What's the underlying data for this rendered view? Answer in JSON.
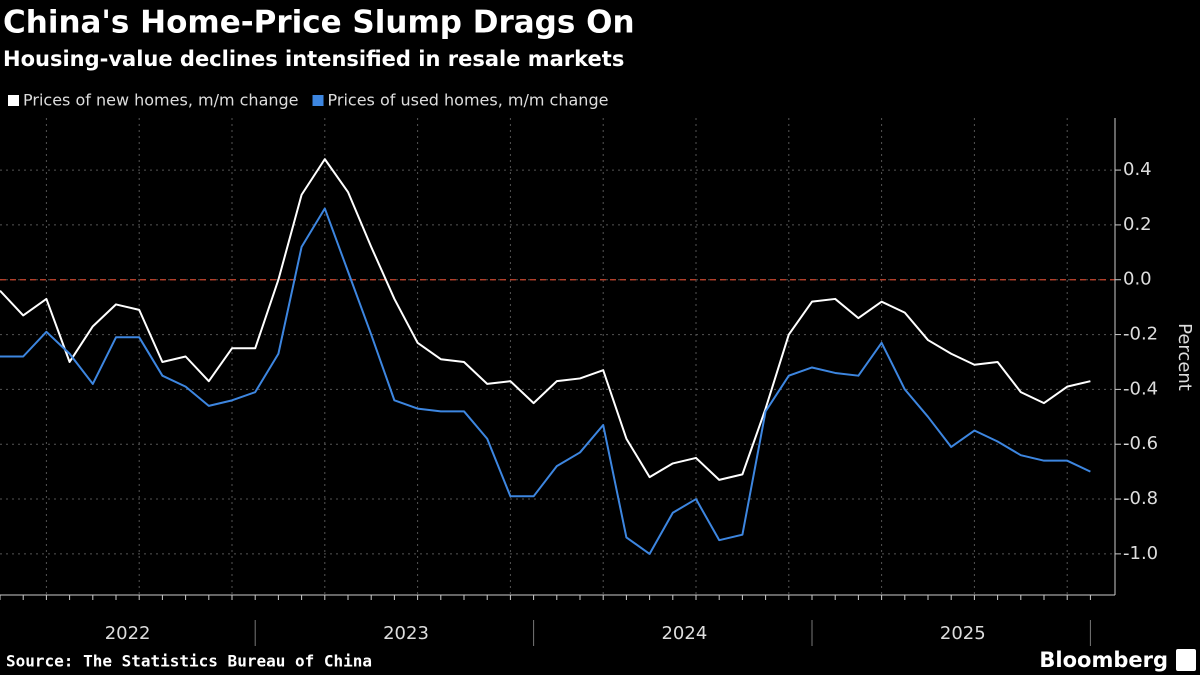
{
  "chart_data": {
    "type": "line",
    "title": "China's Home-Price Slump Drags On",
    "subtitle": "Housing-value declines intensified in resale markets",
    "y_label": "Percent",
    "source": "Source: The Statistics Bureau of China",
    "brand": "Bloomberg",
    "categories": [
      null,
      null,
      null,
      null,
      null,
      null,
      "2022",
      null,
      null,
      null,
      null,
      null,
      null,
      null,
      null,
      null,
      null,
      null,
      "2023",
      null,
      null,
      null,
      null,
      null,
      null,
      null,
      null,
      null,
      null,
      null,
      "2024",
      null,
      null,
      null,
      null,
      null,
      null,
      null,
      null,
      null,
      null,
      null,
      "2025",
      null,
      null,
      null,
      null,
      null
    ],
    "series": [
      {
        "name": "Prices of new homes, m/m change",
        "color": "#ffffff",
        "values": [
          -0.04,
          -0.13,
          -0.07,
          -0.3,
          -0.17,
          -0.09,
          -0.11,
          -0.3,
          -0.28,
          -0.37,
          -0.25,
          -0.25,
          0.0,
          0.31,
          0.44,
          0.32,
          0.12,
          -0.07,
          -0.23,
          -0.29,
          -0.3,
          -0.38,
          -0.37,
          -0.45,
          -0.37,
          -0.36,
          -0.33,
          -0.58,
          -0.72,
          -0.67,
          -0.65,
          -0.73,
          -0.71,
          -0.47,
          -0.2,
          -0.08,
          -0.07,
          -0.14,
          -0.08,
          -0.12,
          -0.22,
          -0.27,
          -0.31,
          -0.3,
          -0.41,
          -0.45,
          -0.39,
          -0.37
        ]
      },
      {
        "name": "Prices of used homes, m/m change",
        "color": "#3d86e0",
        "values": [
          -0.28,
          -0.28,
          -0.19,
          -0.27,
          -0.38,
          -0.21,
          -0.21,
          -0.35,
          -0.39,
          -0.46,
          -0.44,
          -0.41,
          -0.27,
          0.12,
          0.26,
          0.03,
          -0.2,
          -0.44,
          -0.47,
          -0.48,
          -0.48,
          -0.58,
          -0.79,
          -0.79,
          -0.68,
          -0.63,
          -0.53,
          -0.94,
          -1.0,
          -0.85,
          -0.8,
          -0.95,
          -0.93,
          -0.48,
          -0.35,
          -0.32,
          -0.34,
          -0.35,
          -0.23,
          -0.4,
          -0.5,
          -0.61,
          -0.55,
          -0.59,
          -0.64,
          -0.66,
          -0.66,
          -0.7
        ]
      }
    ],
    "ylim": [
      -1.15,
      0.59
    ],
    "yticks": [
      0.4,
      0.2,
      {
        "value": 0,
        "label": "0.0"
      },
      -0.2,
      -0.4,
      -0.6,
      -0.8,
      {
        "value": -1,
        "label": "-1.0"
      }
    ],
    "grid": true,
    "zero_line_color": "#c8462e"
  }
}
